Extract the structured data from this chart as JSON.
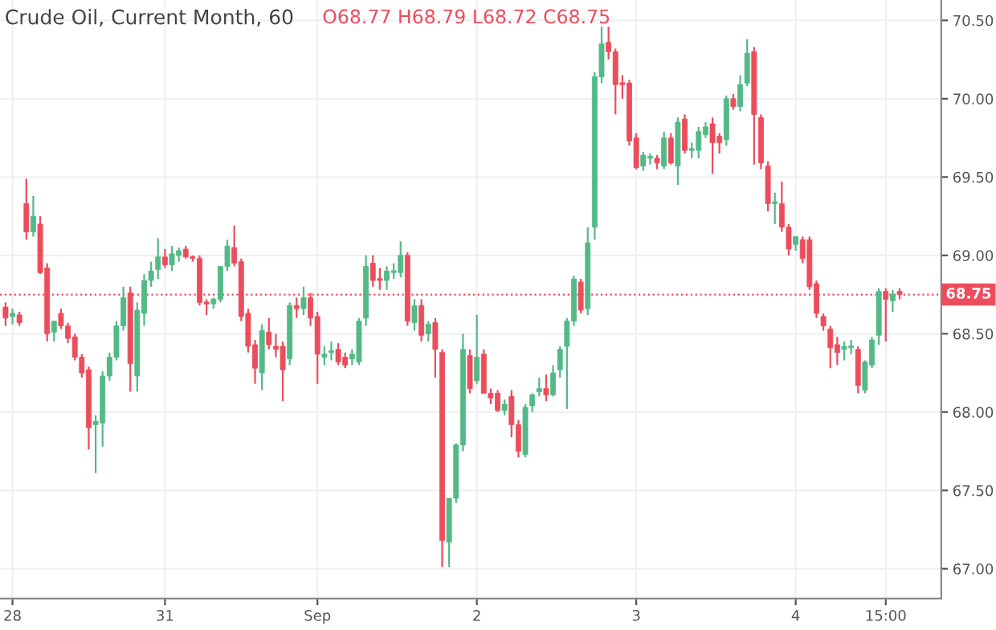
{
  "chart_data": {
    "type": "candlestick",
    "title": "Crude Oil, Current Month, 60",
    "annotations": [
      "O68.77 H68.79 L68.72 C68.75"
    ],
    "categories": [
      null,
      "28",
      null,
      null,
      null,
      null,
      null,
      null,
      null,
      null,
      null,
      null,
      null,
      null,
      null,
      null,
      null,
      null,
      null,
      null,
      null,
      null,
      null,
      "31",
      null,
      null,
      null,
      null,
      null,
      null,
      null,
      null,
      null,
      null,
      null,
      null,
      null,
      null,
      null,
      null,
      null,
      null,
      null,
      null,
      null,
      "Sep",
      null,
      null,
      null,
      null,
      null,
      null,
      null,
      null,
      null,
      null,
      null,
      null,
      null,
      null,
      null,
      null,
      null,
      null,
      null,
      null,
      null,
      null,
      "2",
      null,
      null,
      null,
      null,
      null,
      null,
      null,
      null,
      null,
      null,
      null,
      null,
      null,
      null,
      null,
      null,
      null,
      null,
      null,
      null,
      null,
      null,
      "3",
      null,
      null,
      null,
      null,
      null,
      null,
      null,
      null,
      null,
      null,
      null,
      null,
      null,
      null,
      null,
      null,
      null,
      null,
      null,
      null,
      null,
      null,
      "4",
      null,
      null,
      null,
      null,
      null,
      null,
      null,
      null,
      null,
      null,
      null,
      null,
      "15:00",
      null,
      null
    ],
    "ohlc": [
      [
        68.67,
        68.7,
        68.55,
        68.6
      ],
      [
        68.61,
        68.66,
        68.56,
        68.63
      ],
      [
        68.62,
        68.64,
        68.55,
        68.57
      ],
      [
        69.33,
        69.49,
        69.1,
        69.15
      ],
      [
        69.15,
        69.38,
        69.12,
        69.25
      ],
      [
        69.2,
        69.25,
        68.88,
        68.89
      ],
      [
        68.92,
        68.95,
        68.45,
        68.5
      ],
      [
        68.51,
        68.58,
        68.45,
        68.58
      ],
      [
        68.63,
        68.66,
        68.53,
        68.55
      ],
      [
        68.55,
        68.57,
        68.44,
        68.47
      ],
      [
        68.48,
        68.5,
        68.33,
        68.35
      ],
      [
        68.35,
        68.37,
        68.22,
        68.25
      ],
      [
        68.27,
        68.29,
        67.76,
        67.9
      ],
      [
        67.92,
        67.98,
        67.61,
        67.94
      ],
      [
        67.93,
        68.26,
        67.78,
        68.23
      ],
      [
        68.23,
        68.38,
        68.2,
        68.35
      ],
      [
        68.35,
        68.58,
        68.33,
        68.55
      ],
      [
        68.55,
        68.8,
        68.52,
        68.73
      ],
      [
        68.76,
        68.8,
        68.13,
        68.31
      ],
      [
        68.23,
        68.7,
        68.13,
        68.65
      ],
      [
        68.63,
        68.88,
        68.55,
        68.84
      ],
      [
        68.84,
        68.96,
        68.8,
        68.9
      ],
      [
        68.91,
        69.11,
        68.85,
        68.99
      ],
      [
        68.99,
        69.04,
        68.92,
        68.94
      ],
      [
        68.94,
        69.06,
        68.9,
        69.01
      ],
      [
        69.0,
        69.05,
        68.96,
        69.03
      ],
      [
        69.04,
        69.06,
        68.98,
        68.99
      ],
      [
        68.99,
        69.0,
        68.96,
        68.98
      ],
      [
        68.98,
        69.0,
        68.68,
        68.7
      ],
      [
        68.7,
        68.72,
        68.62,
        68.69
      ],
      [
        68.69,
        68.73,
        68.66,
        68.72
      ],
      [
        68.72,
        68.93,
        68.7,
        68.93
      ],
      [
        68.93,
        69.1,
        68.9,
        69.06
      ],
      [
        69.05,
        69.19,
        68.93,
        68.95
      ],
      [
        68.96,
        68.98,
        68.58,
        68.61
      ],
      [
        68.63,
        68.66,
        68.38,
        68.42
      ],
      [
        68.43,
        68.46,
        68.18,
        68.28
      ],
      [
        68.25,
        68.56,
        68.14,
        68.52
      ],
      [
        68.51,
        68.6,
        68.4,
        68.43
      ],
      [
        68.42,
        68.5,
        68.35,
        68.4
      ],
      [
        68.42,
        68.45,
        68.07,
        68.27
      ],
      [
        68.34,
        68.7,
        68.3,
        68.68
      ],
      [
        68.68,
        68.73,
        68.6,
        68.66
      ],
      [
        68.66,
        68.8,
        68.62,
        68.73
      ],
      [
        68.73,
        68.76,
        68.55,
        68.6
      ],
      [
        68.61,
        68.64,
        68.18,
        68.37
      ],
      [
        68.35,
        68.42,
        68.3,
        68.37
      ],
      [
        68.38,
        68.45,
        68.33,
        68.39
      ],
      [
        68.4,
        68.44,
        68.3,
        68.32
      ],
      [
        68.35,
        68.38,
        68.28,
        68.3
      ],
      [
        68.34,
        68.4,
        68.3,
        68.37
      ],
      [
        68.32,
        68.6,
        68.3,
        68.58
      ],
      [
        68.6,
        69.0,
        68.55,
        68.93
      ],
      [
        68.95,
        69.0,
        68.8,
        68.84
      ],
      [
        68.85,
        68.92,
        68.78,
        68.84
      ],
      [
        68.84,
        68.93,
        68.78,
        68.9
      ],
      [
        68.89,
        68.95,
        68.85,
        68.9
      ],
      [
        68.89,
        69.09,
        68.86,
        69.0
      ],
      [
        69.0,
        69.02,
        68.55,
        68.58
      ],
      [
        68.57,
        68.72,
        68.52,
        68.68
      ],
      [
        68.68,
        68.72,
        68.45,
        68.49
      ],
      [
        68.5,
        68.58,
        68.45,
        68.56
      ],
      [
        68.57,
        68.6,
        68.22,
        68.4
      ],
      [
        68.38,
        68.4,
        67.01,
        67.18
      ],
      [
        67.17,
        67.45,
        67.01,
        67.45
      ],
      [
        67.45,
        67.8,
        67.42,
        67.79
      ],
      [
        67.79,
        68.5,
        67.75,
        68.4
      ],
      [
        68.36,
        68.4,
        68.12,
        68.15
      ],
      [
        68.2,
        68.62,
        68.18,
        68.35
      ],
      [
        68.37,
        68.4,
        68.12,
        68.12
      ],
      [
        68.12,
        68.15,
        68.05,
        68.09
      ],
      [
        68.12,
        68.14,
        68.0,
        68.01
      ],
      [
        68.01,
        68.08,
        67.98,
        68.05
      ],
      [
        68.1,
        68.14,
        67.84,
        67.92
      ],
      [
        67.92,
        67.95,
        67.71,
        67.75
      ],
      [
        67.73,
        68.05,
        67.71,
        68.03
      ],
      [
        68.04,
        68.12,
        68.0,
        68.11
      ],
      [
        68.13,
        68.22,
        68.1,
        68.15
      ],
      [
        68.15,
        68.24,
        68.07,
        68.11
      ],
      [
        68.11,
        68.3,
        68.1,
        68.25
      ],
      [
        68.27,
        68.42,
        68.22,
        68.4
      ],
      [
        68.42,
        68.6,
        68.02,
        68.58
      ],
      [
        68.58,
        68.87,
        68.55,
        68.85
      ],
      [
        68.83,
        68.85,
        68.63,
        68.65
      ],
      [
        68.66,
        69.18,
        68.62,
        69.08
      ],
      [
        69.18,
        70.17,
        69.1,
        70.14
      ],
      [
        70.14,
        70.46,
        70.1,
        70.35
      ],
      [
        70.36,
        70.46,
        70.25,
        70.3
      ],
      [
        70.3,
        70.32,
        69.9,
        70.09
      ],
      [
        70.1,
        70.15,
        70.0,
        70.09
      ],
      [
        70.1,
        70.12,
        69.7,
        69.73
      ],
      [
        69.75,
        69.78,
        69.55,
        69.56
      ],
      [
        69.57,
        69.66,
        69.54,
        69.64
      ],
      [
        69.62,
        69.65,
        69.58,
        69.63
      ],
      [
        69.62,
        69.64,
        69.55,
        69.59
      ],
      [
        69.57,
        69.79,
        69.55,
        69.75
      ],
      [
        69.75,
        69.78,
        69.58,
        69.59
      ],
      [
        69.57,
        69.88,
        69.45,
        69.85
      ],
      [
        69.87,
        69.9,
        69.65,
        69.67
      ],
      [
        69.67,
        69.72,
        69.62,
        69.68
      ],
      [
        69.67,
        69.82,
        69.62,
        69.79
      ],
      [
        69.77,
        69.85,
        69.75,
        69.82
      ],
      [
        69.84,
        69.88,
        69.52,
        69.72
      ],
      [
        69.76,
        69.78,
        69.65,
        69.72
      ],
      [
        69.74,
        70.02,
        69.7,
        70.0
      ],
      [
        70.0,
        70.03,
        69.93,
        69.95
      ],
      [
        69.95,
        70.15,
        69.92,
        70.09
      ],
      [
        70.1,
        70.38,
        70.08,
        70.29
      ],
      [
        70.3,
        70.33,
        69.58,
        69.9
      ],
      [
        69.88,
        69.9,
        69.55,
        69.59
      ],
      [
        69.57,
        69.6,
        69.28,
        69.33
      ],
      [
        69.33,
        69.4,
        69.2,
        69.34
      ],
      [
        69.33,
        69.47,
        69.15,
        69.18
      ],
      [
        69.18,
        69.2,
        69.0,
        69.04
      ],
      [
        69.07,
        69.12,
        69.03,
        69.12
      ],
      [
        69.1,
        69.12,
        68.95,
        68.98
      ],
      [
        69.1,
        69.12,
        68.78,
        68.8
      ],
      [
        68.82,
        68.84,
        68.6,
        68.63
      ],
      [
        68.61,
        68.63,
        68.52,
        68.55
      ],
      [
        68.53,
        68.55,
        68.28,
        68.41
      ],
      [
        68.43,
        68.48,
        68.3,
        68.38
      ],
      [
        68.4,
        68.45,
        68.33,
        68.42
      ],
      [
        68.41,
        68.46,
        68.37,
        68.42
      ],
      [
        68.4,
        68.42,
        68.12,
        68.17
      ],
      [
        68.14,
        68.33,
        68.12,
        68.32
      ],
      [
        68.3,
        68.48,
        68.28,
        68.46
      ],
      [
        68.49,
        68.79,
        68.43,
        68.77
      ],
      [
        68.77,
        68.79,
        68.45,
        68.72
      ],
      [
        68.71,
        68.78,
        68.64,
        68.75
      ],
      [
        68.77,
        68.79,
        68.72,
        68.75
      ]
    ],
    "colors": [
      "#eb4d5c",
      "#53b987",
      "#eb4d5c",
      "#eb4d5c",
      "#53b987",
      "#eb4d5c",
      "#eb4d5c",
      "#53b987",
      "#eb4d5c",
      "#eb4d5c",
      "#eb4d5c",
      "#eb4d5c",
      "#eb4d5c",
      "#53b987",
      "#53b987",
      "#53b987",
      "#53b987",
      "#53b987",
      "#eb4d5c",
      "#53b987",
      "#53b987",
      "#53b987",
      "#53b987",
      "#eb4d5c",
      "#53b987",
      "#53b987",
      "#eb4d5c",
      "#eb4d5c",
      "#eb4d5c",
      "#eb4d5c",
      "#53b987",
      "#53b987",
      "#53b987",
      "#eb4d5c",
      "#eb4d5c",
      "#eb4d5c",
      "#eb4d5c",
      "#53b987",
      "#eb4d5c",
      "#eb4d5c",
      "#eb4d5c",
      "#53b987",
      "#eb4d5c",
      "#53b987",
      "#eb4d5c",
      "#eb4d5c",
      "#53b987",
      "#53b987",
      "#eb4d5c",
      "#eb4d5c",
      "#53b987",
      "#53b987",
      "#53b987",
      "#eb4d5c",
      "#eb4d5c",
      "#53b987",
      "#53b987",
      "#53b987",
      "#eb4d5c",
      "#53b987",
      "#eb4d5c",
      "#53b987",
      "#eb4d5c",
      "#eb4d5c",
      "#53b987",
      "#53b987",
      "#53b987",
      "#eb4d5c",
      "#53b987",
      "#eb4d5c",
      "#eb4d5c",
      "#eb4d5c",
      "#53b987",
      "#eb4d5c",
      "#eb4d5c",
      "#53b987",
      "#53b987",
      "#53b987",
      "#eb4d5c",
      "#53b987",
      "#53b987",
      "#53b987",
      "#53b987",
      "#eb4d5c",
      "#53b987",
      "#53b987",
      "#53b987",
      "#eb4d5c",
      "#eb4d5c",
      "#eb4d5c",
      "#eb4d5c",
      "#eb4d5c",
      "#53b987",
      "#53b987",
      "#eb4d5c",
      "#53b987",
      "#eb4d5c",
      "#53b987",
      "#eb4d5c",
      "#53b987",
      "#53b987",
      "#53b987",
      "#eb4d5c",
      "#eb4d5c",
      "#53b987",
      "#eb4d5c",
      "#53b987",
      "#53b987",
      "#eb4d5c",
      "#eb4d5c",
      "#eb4d5c",
      "#53b987",
      "#eb4d5c",
      "#eb4d5c",
      "#53b987",
      "#eb4d5c",
      "#eb4d5c",
      "#eb4d5c",
      "#eb4d5c",
      "#eb4d5c",
      "#eb4d5c",
      "#53b987",
      "#53b987",
      "#eb4d5c",
      "#53b987",
      "#53b987",
      "#53b987",
      "#eb4d5c",
      "#53b987",
      "#eb4d5c"
    ],
    "ylim": [
      66.81,
      70.63
    ],
    "yticks": [
      {
        "value": 67,
        "label": "67.00"
      },
      {
        "value": 67.5,
        "label": "67.50"
      },
      {
        "value": 68,
        "label": "68.00"
      },
      {
        "value": 68.5,
        "label": "68.50"
      },
      {
        "value": 69,
        "label": "69.00"
      },
      {
        "value": 69.5,
        "label": "69.50"
      },
      {
        "value": 70,
        "label": "70.00"
      },
      {
        "value": 70.5,
        "label": "70.50"
      }
    ],
    "ref_lines": [
      {
        "axis": "y",
        "value": 68.75,
        "label": "68.75",
        "color": "#eb4d5c",
        "line_style": "dotted"
      }
    ],
    "grid": true
  }
}
